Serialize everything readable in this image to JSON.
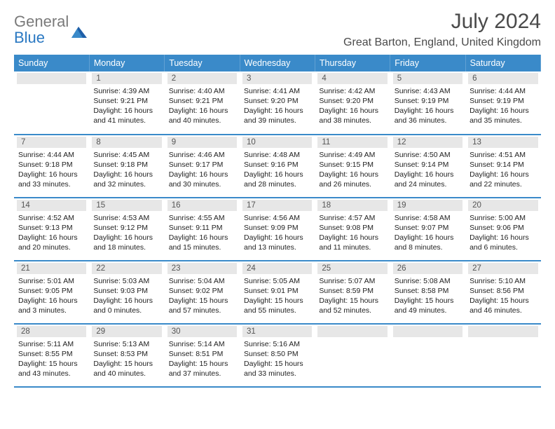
{
  "brand": {
    "general": "General",
    "blue": "Blue"
  },
  "title": "July 2024",
  "location": "Great Barton, England, United Kingdom",
  "headers": [
    "Sunday",
    "Monday",
    "Tuesday",
    "Wednesday",
    "Thursday",
    "Friday",
    "Saturday"
  ],
  "colors": {
    "header_bg": "#3a8ac9",
    "header_fg": "#ffffff",
    "daybar_bg": "#e7e7e7",
    "row_border": "#3a8ac9",
    "logo_general": "#7a7a7a",
    "logo_blue": "#2a78c2",
    "title_color": "#4a4a4a"
  },
  "weeks": [
    [
      {
        "day": "",
        "sunrise": "",
        "sunset": "",
        "daylight": ""
      },
      {
        "day": "1",
        "sunrise": "Sunrise: 4:39 AM",
        "sunset": "Sunset: 9:21 PM",
        "daylight": "Daylight: 16 hours\nand 41 minutes."
      },
      {
        "day": "2",
        "sunrise": "Sunrise: 4:40 AM",
        "sunset": "Sunset: 9:21 PM",
        "daylight": "Daylight: 16 hours\nand 40 minutes."
      },
      {
        "day": "3",
        "sunrise": "Sunrise: 4:41 AM",
        "sunset": "Sunset: 9:20 PM",
        "daylight": "Daylight: 16 hours\nand 39 minutes."
      },
      {
        "day": "4",
        "sunrise": "Sunrise: 4:42 AM",
        "sunset": "Sunset: 9:20 PM",
        "daylight": "Daylight: 16 hours\nand 38 minutes."
      },
      {
        "day": "5",
        "sunrise": "Sunrise: 4:43 AM",
        "sunset": "Sunset: 9:19 PM",
        "daylight": "Daylight: 16 hours\nand 36 minutes."
      },
      {
        "day": "6",
        "sunrise": "Sunrise: 4:44 AM",
        "sunset": "Sunset: 9:19 PM",
        "daylight": "Daylight: 16 hours\nand 35 minutes."
      }
    ],
    [
      {
        "day": "7",
        "sunrise": "Sunrise: 4:44 AM",
        "sunset": "Sunset: 9:18 PM",
        "daylight": "Daylight: 16 hours\nand 33 minutes."
      },
      {
        "day": "8",
        "sunrise": "Sunrise: 4:45 AM",
        "sunset": "Sunset: 9:18 PM",
        "daylight": "Daylight: 16 hours\nand 32 minutes."
      },
      {
        "day": "9",
        "sunrise": "Sunrise: 4:46 AM",
        "sunset": "Sunset: 9:17 PM",
        "daylight": "Daylight: 16 hours\nand 30 minutes."
      },
      {
        "day": "10",
        "sunrise": "Sunrise: 4:48 AM",
        "sunset": "Sunset: 9:16 PM",
        "daylight": "Daylight: 16 hours\nand 28 minutes."
      },
      {
        "day": "11",
        "sunrise": "Sunrise: 4:49 AM",
        "sunset": "Sunset: 9:15 PM",
        "daylight": "Daylight: 16 hours\nand 26 minutes."
      },
      {
        "day": "12",
        "sunrise": "Sunrise: 4:50 AM",
        "sunset": "Sunset: 9:14 PM",
        "daylight": "Daylight: 16 hours\nand 24 minutes."
      },
      {
        "day": "13",
        "sunrise": "Sunrise: 4:51 AM",
        "sunset": "Sunset: 9:14 PM",
        "daylight": "Daylight: 16 hours\nand 22 minutes."
      }
    ],
    [
      {
        "day": "14",
        "sunrise": "Sunrise: 4:52 AM",
        "sunset": "Sunset: 9:13 PM",
        "daylight": "Daylight: 16 hours\nand 20 minutes."
      },
      {
        "day": "15",
        "sunrise": "Sunrise: 4:53 AM",
        "sunset": "Sunset: 9:12 PM",
        "daylight": "Daylight: 16 hours\nand 18 minutes."
      },
      {
        "day": "16",
        "sunrise": "Sunrise: 4:55 AM",
        "sunset": "Sunset: 9:11 PM",
        "daylight": "Daylight: 16 hours\nand 15 minutes."
      },
      {
        "day": "17",
        "sunrise": "Sunrise: 4:56 AM",
        "sunset": "Sunset: 9:09 PM",
        "daylight": "Daylight: 16 hours\nand 13 minutes."
      },
      {
        "day": "18",
        "sunrise": "Sunrise: 4:57 AM",
        "sunset": "Sunset: 9:08 PM",
        "daylight": "Daylight: 16 hours\nand 11 minutes."
      },
      {
        "day": "19",
        "sunrise": "Sunrise: 4:58 AM",
        "sunset": "Sunset: 9:07 PM",
        "daylight": "Daylight: 16 hours\nand 8 minutes."
      },
      {
        "day": "20",
        "sunrise": "Sunrise: 5:00 AM",
        "sunset": "Sunset: 9:06 PM",
        "daylight": "Daylight: 16 hours\nand 6 minutes."
      }
    ],
    [
      {
        "day": "21",
        "sunrise": "Sunrise: 5:01 AM",
        "sunset": "Sunset: 9:05 PM",
        "daylight": "Daylight: 16 hours\nand 3 minutes."
      },
      {
        "day": "22",
        "sunrise": "Sunrise: 5:03 AM",
        "sunset": "Sunset: 9:03 PM",
        "daylight": "Daylight: 16 hours\nand 0 minutes."
      },
      {
        "day": "23",
        "sunrise": "Sunrise: 5:04 AM",
        "sunset": "Sunset: 9:02 PM",
        "daylight": "Daylight: 15 hours\nand 57 minutes."
      },
      {
        "day": "24",
        "sunrise": "Sunrise: 5:05 AM",
        "sunset": "Sunset: 9:01 PM",
        "daylight": "Daylight: 15 hours\nand 55 minutes."
      },
      {
        "day": "25",
        "sunrise": "Sunrise: 5:07 AM",
        "sunset": "Sunset: 8:59 PM",
        "daylight": "Daylight: 15 hours\nand 52 minutes."
      },
      {
        "day": "26",
        "sunrise": "Sunrise: 5:08 AM",
        "sunset": "Sunset: 8:58 PM",
        "daylight": "Daylight: 15 hours\nand 49 minutes."
      },
      {
        "day": "27",
        "sunrise": "Sunrise: 5:10 AM",
        "sunset": "Sunset: 8:56 PM",
        "daylight": "Daylight: 15 hours\nand 46 minutes."
      }
    ],
    [
      {
        "day": "28",
        "sunrise": "Sunrise: 5:11 AM",
        "sunset": "Sunset: 8:55 PM",
        "daylight": "Daylight: 15 hours\nand 43 minutes."
      },
      {
        "day": "29",
        "sunrise": "Sunrise: 5:13 AM",
        "sunset": "Sunset: 8:53 PM",
        "daylight": "Daylight: 15 hours\nand 40 minutes."
      },
      {
        "day": "30",
        "sunrise": "Sunrise: 5:14 AM",
        "sunset": "Sunset: 8:51 PM",
        "daylight": "Daylight: 15 hours\nand 37 minutes."
      },
      {
        "day": "31",
        "sunrise": "Sunrise: 5:16 AM",
        "sunset": "Sunset: 8:50 PM",
        "daylight": "Daylight: 15 hours\nand 33 minutes."
      },
      {
        "day": "",
        "sunrise": "",
        "sunset": "",
        "daylight": ""
      },
      {
        "day": "",
        "sunrise": "",
        "sunset": "",
        "daylight": ""
      },
      {
        "day": "",
        "sunrise": "",
        "sunset": "",
        "daylight": ""
      }
    ]
  ]
}
